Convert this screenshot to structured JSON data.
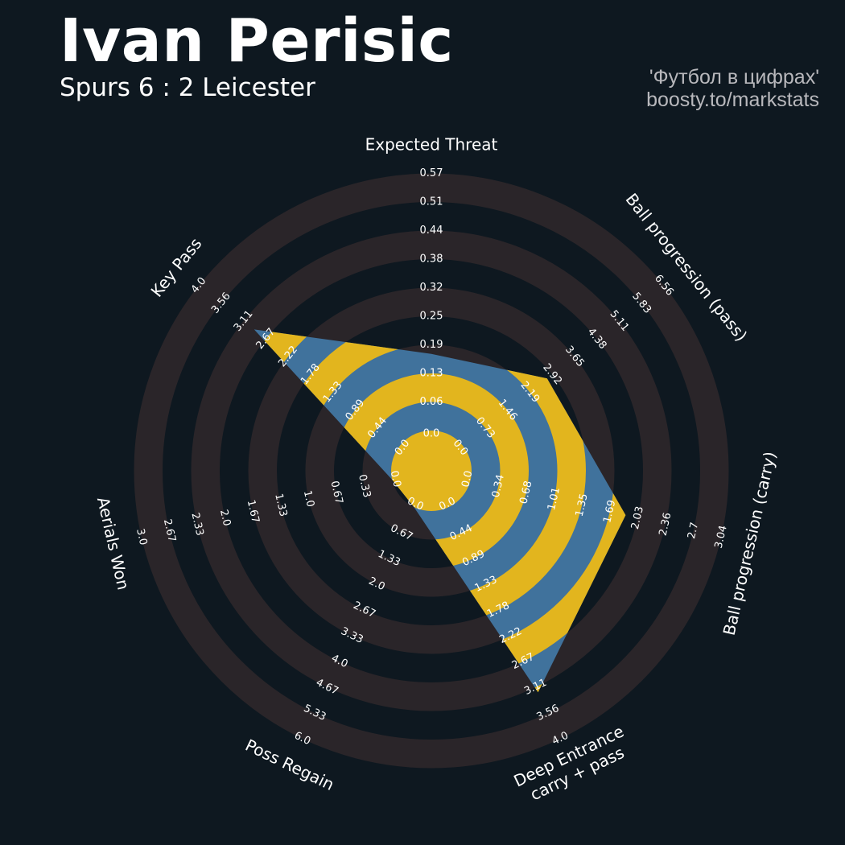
{
  "header": {
    "title": "Ivan Perisic",
    "subtitle": "Spurs 6 : 2 Leicester",
    "credit_line1": "'Футбол в цифрах'",
    "credit_line2": "boosty.to/markstats"
  },
  "colors": {
    "background": "#0e1820",
    "ring_band": "#2a2529",
    "value_blue": "#40729c",
    "value_yellow": "#e2b51e",
    "text": "#ffffff",
    "credit": "#b8b8bc"
  },
  "chart_data": {
    "type": "radar",
    "rings": 9,
    "params": [
      {
        "name": "Expected Threat",
        "lines": [
          "Expected Threat"
        ],
        "value": 0.17,
        "ticks": [
          "0.0",
          "0.06",
          "0.13",
          "0.19",
          "0.25",
          "0.32",
          "0.38",
          "0.44",
          "0.51",
          "0.57"
        ]
      },
      {
        "name": "Ball progression (pass)",
        "lines": [
          "Ball progression (pass)"
        ],
        "value": 2.75,
        "ticks": [
          "0.0",
          "0.73",
          "1.46",
          "2.19",
          "2.92",
          "3.65",
          "4.38",
          "5.11",
          "5.83",
          "6.56"
        ]
      },
      {
        "name": "Ball progression (carry)",
        "lines": [
          "Ball progression (carry)"
        ],
        "value": 1.88,
        "ticks": [
          "0.0",
          "0.34",
          "0.68",
          "1.01",
          "1.35",
          "1.69",
          "2.03",
          "2.36",
          "2.7",
          "3.04"
        ]
      },
      {
        "name": "Deep Entrance carry + pass",
        "lines": [
          "Deep Entrance",
          "carry + pass"
        ],
        "value": 3.2,
        "ticks": [
          "0.0",
          "0.44",
          "0.89",
          "1.33",
          "1.78",
          "2.22",
          "2.67",
          "3.11",
          "3.56",
          "4.0"
        ]
      },
      {
        "name": "Poss Regain",
        "lines": [
          "Poss Regain"
        ],
        "value": 0.0,
        "ticks": [
          "0.0",
          "0.67",
          "1.33",
          "2.0",
          "2.67",
          "3.33",
          "4.0",
          "4.67",
          "5.33",
          "6.0"
        ]
      },
      {
        "name": "Aerials Won",
        "lines": [
          "Aerials Won"
        ],
        "value": 0.0,
        "ticks": [
          "0.0",
          "0.33",
          "0.67",
          "1.0",
          "1.33",
          "1.67",
          "2.0",
          "2.33",
          "2.67",
          "3.0"
        ]
      },
      {
        "name": "Key Pass",
        "lines": [
          "Key Pass"
        ],
        "value": 2.9,
        "ticks": [
          "0.0",
          "0.44",
          "0.89",
          "1.33",
          "1.78",
          "2.22",
          "2.67",
          "3.11",
          "3.56",
          "4.0"
        ]
      }
    ]
  }
}
